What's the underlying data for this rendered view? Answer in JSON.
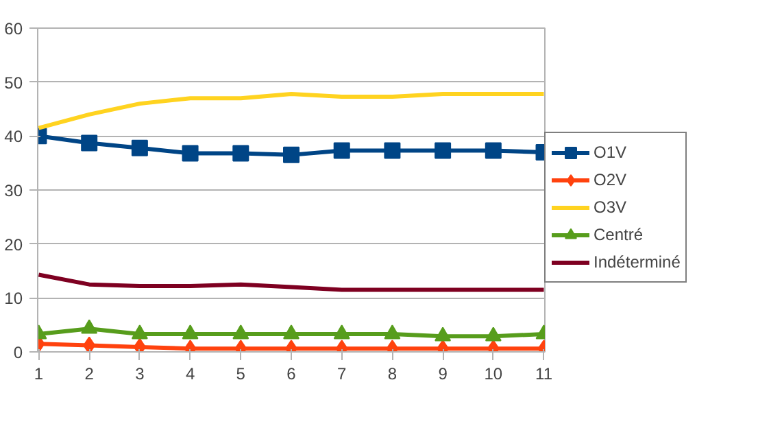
{
  "chart_data": {
    "type": "line",
    "categories": [
      "1",
      "2",
      "3",
      "4",
      "5",
      "6",
      "7",
      "8",
      "9",
      "10",
      "11"
    ],
    "ylim": [
      0,
      60
    ],
    "yticks": [
      0,
      10,
      20,
      30,
      40,
      50,
      60
    ],
    "grid": "y",
    "legend": "right",
    "series": [
      {
        "name": "O1V",
        "color": "#004586",
        "marker": "square",
        "values": [
          40,
          38.7,
          37.8,
          36.8,
          36.8,
          36.5,
          37.3,
          37.3,
          37.3,
          37.3,
          37.0
        ]
      },
      {
        "name": "O2V",
        "color": "#ff420e",
        "marker": "diamond",
        "values": [
          1.5,
          1.2,
          0.9,
          0.6,
          0.6,
          0.6,
          0.6,
          0.6,
          0.6,
          0.6,
          0.6
        ]
      },
      {
        "name": "O3V",
        "color": "#ffd320",
        "marker": "none",
        "values": [
          41.5,
          44,
          46,
          47,
          47,
          47.8,
          47.3,
          47.3,
          47.8,
          47.8,
          47.8
        ]
      },
      {
        "name": "Centré",
        "color": "#579d1c",
        "marker": "triangle",
        "values": [
          3.3,
          4.3,
          3.3,
          3.3,
          3.3,
          3.3,
          3.3,
          3.3,
          2.9,
          2.9,
          3.3
        ]
      },
      {
        "name": "Indéterminé",
        "color": "#7e0021",
        "marker": "none",
        "values": [
          14.3,
          12.5,
          12.2,
          12.2,
          12.5,
          12.0,
          11.5,
          11.5,
          11.5,
          11.5,
          11.5
        ]
      }
    ]
  }
}
